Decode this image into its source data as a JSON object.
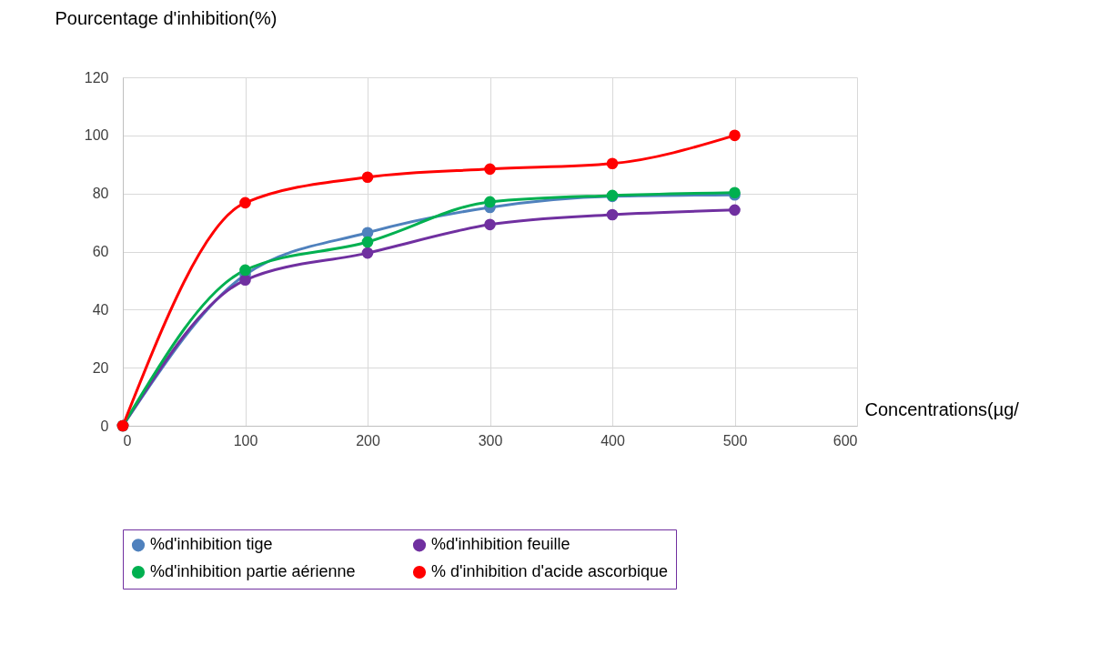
{
  "chart_data": {
    "type": "line",
    "xlabel": "Concentrations(µg/",
    "ylabel": "Pourcentage d'inhibition(%)",
    "x": [
      0,
      100,
      200,
      300,
      400,
      500
    ],
    "series": [
      {
        "name": "%d'inhibition tige",
        "color": "#4f81bd",
        "values": [
          0,
          52,
          66.5,
          75.2,
          79,
          79.5
        ]
      },
      {
        "name": "%d'inhibition feuille",
        "color": "#7030a0",
        "values": [
          0,
          50.2,
          59.5,
          69.3,
          72.7,
          74.3
        ]
      },
      {
        "name": "%d'inhibition partie aérienne",
        "color": "#00b050",
        "values": [
          0,
          53.6,
          63.3,
          77.1,
          79.3,
          80.3
        ]
      },
      {
        "name": "% d'inhibition d'acide ascorbique",
        "color": "#ff0000",
        "values": [
          0,
          76.8,
          85.6,
          88.4,
          90.3,
          100
        ]
      }
    ],
    "xlim": [
      0,
      600
    ],
    "xticks": [
      0,
      100,
      200,
      300,
      400,
      500,
      600
    ],
    "ylim": [
      0,
      120
    ],
    "yticks": [
      0,
      20,
      40,
      60,
      80,
      100,
      120
    ],
    "grid": true,
    "legend": "bottom",
    "marker": "circle",
    "line_style": "solid"
  }
}
